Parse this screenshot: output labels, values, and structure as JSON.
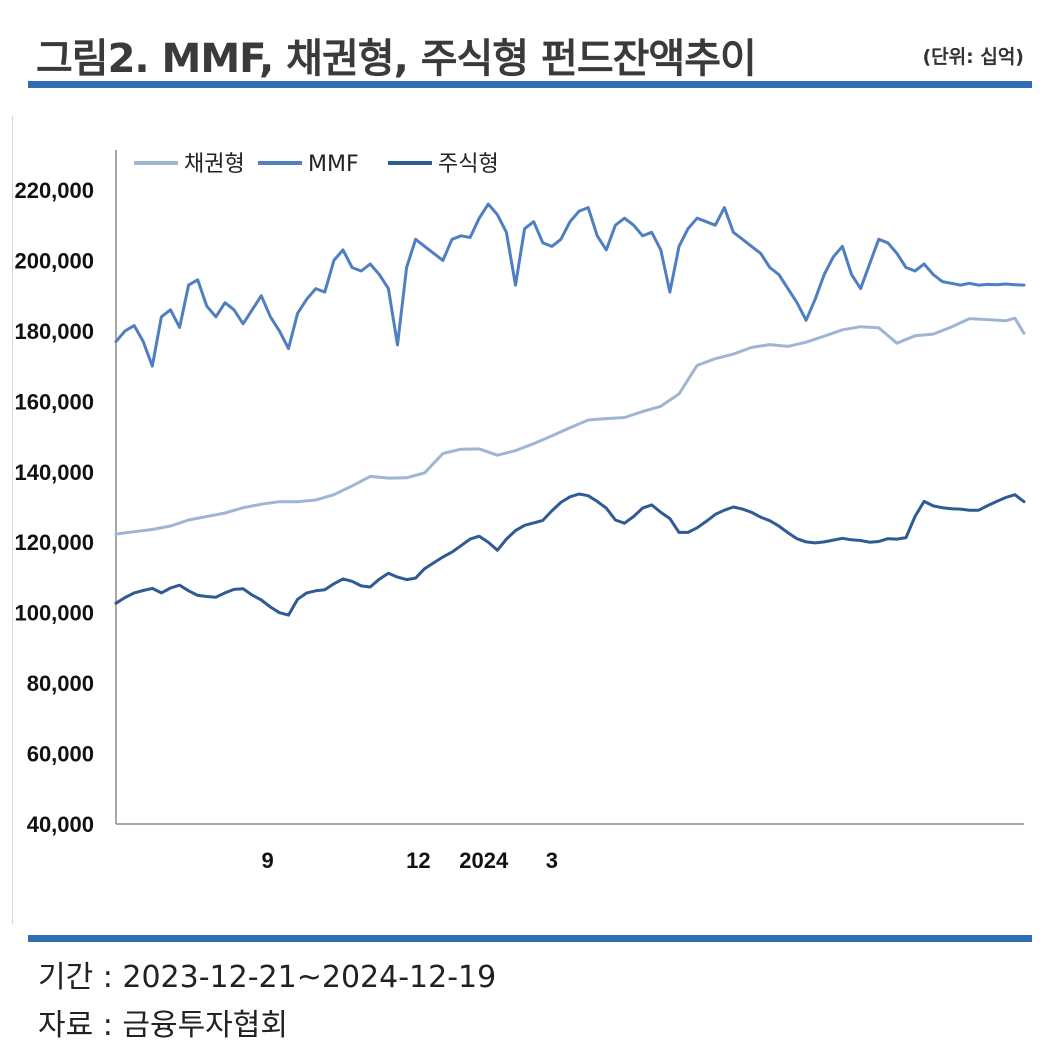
{
  "header": {
    "title": "그림2. MMF, 채권형, 주식형 펀드잔액추이",
    "unit": "(단위: 십억)"
  },
  "footer": {
    "period": "기간 : 2023-12-21~2024-12-19",
    "source": "자료 : 금융투자협회"
  },
  "colors": {
    "rule": "#2f6eb0",
    "bond": "#9fb6d3",
    "mmf": "#4f7fc0",
    "equity": "#2e5b94"
  },
  "chart_data": {
    "type": "line",
    "ylim": [
      40000,
      220000
    ],
    "yticks": [
      "220,000",
      "200,000",
      "180,000",
      "160,000",
      "140,000",
      "120,000",
      "100,000",
      "80,000",
      "60,000",
      "40,000"
    ],
    "ytick_values": [
      220000,
      200000,
      180000,
      160000,
      140000,
      120000,
      100000,
      80000,
      60000,
      40000
    ],
    "xlim": [
      0,
      100
    ],
    "xticks": [
      {
        "label": "9",
        "x": 16.7
      },
      {
        "label": "12",
        "x": 33.3
      },
      {
        "label": "2024",
        "x": 40.5
      },
      {
        "label": "3",
        "x": 48.0
      }
    ],
    "legend": [
      "채권형",
      "MMF",
      "주식형"
    ],
    "series": [
      {
        "name": "채권형",
        "color": "#9fb6d3",
        "x": [
          0,
          2,
          4,
          6,
          8,
          10,
          12,
          14,
          16,
          18,
          20,
          22,
          24,
          26,
          28,
          30,
          32,
          34,
          36,
          38,
          40,
          42,
          44,
          46,
          48,
          50,
          52,
          54,
          56,
          58,
          60,
          62,
          64,
          66,
          68,
          70,
          71,
          72,
          74,
          76,
          78,
          80,
          82,
          84,
          86,
          88,
          90,
          92,
          94,
          96,
          98,
          99,
          100
        ],
        "values": [
          122300,
          123000,
          123600,
          124600,
          126300,
          127300,
          128300,
          129800,
          130800,
          131500,
          131500,
          132000,
          133500,
          136000,
          138700,
          138200,
          138300,
          139700,
          145200,
          146400,
          146500,
          144700,
          146000,
          148000,
          150200,
          152500,
          154700,
          155100,
          155400,
          157100,
          158600,
          162100,
          170200,
          172100,
          173400,
          175300,
          175700,
          176100,
          175600,
          176800,
          178500,
          180300,
          181200,
          180900,
          176500,
          178600,
          179100,
          181100,
          183500,
          183200,
          182900,
          183600,
          179300
        ]
      },
      {
        "name": "MMF",
        "color": "#4f7fc0",
        "x": [
          0,
          1,
          2,
          3,
          4,
          5,
          6,
          7,
          8,
          9,
          10,
          11,
          12,
          13,
          14,
          15,
          16,
          17,
          18,
          19,
          20,
          21,
          22,
          23,
          24,
          25,
          26,
          27,
          28,
          29,
          30,
          31,
          32,
          33,
          34,
          35,
          36,
          37,
          38,
          39,
          40,
          41,
          42,
          43,
          44,
          45,
          46,
          47,
          48,
          49,
          50,
          51,
          52,
          53,
          54,
          55,
          56,
          57,
          58,
          59,
          60,
          61,
          62,
          63,
          64,
          65,
          66,
          67,
          68,
          69,
          70,
          71,
          72,
          73,
          74,
          75,
          76,
          77,
          78,
          79,
          80,
          81,
          82,
          83,
          84,
          85,
          86,
          87,
          88,
          89,
          90,
          91,
          92,
          93,
          94,
          95,
          96,
          97,
          98,
          99,
          100
        ],
        "values": [
          177000,
          180000,
          181500,
          177000,
          170000,
          184000,
          186000,
          181000,
          193000,
          194500,
          187000,
          184000,
          188000,
          186000,
          182000,
          186000,
          190000,
          184000,
          180000,
          175000,
          185000,
          189000,
          192000,
          191000,
          200000,
          203000,
          198000,
          197000,
          199000,
          196000,
          192000,
          176000,
          198000,
          206000,
          204000,
          202000,
          200000,
          206000,
          207000,
          206500,
          212000,
          216000,
          213000,
          208000,
          193000,
          209000,
          211000,
          205000,
          204000,
          206000,
          211000,
          214000,
          215000,
          207000,
          203000,
          210000,
          212000,
          210000,
          207000,
          208000,
          203000,
          191000,
          204000,
          209000,
          212000,
          211000,
          210000,
          215000,
          208000,
          206000,
          204000,
          202000,
          198000,
          196000,
          192000,
          188000,
          183000,
          189000,
          196000,
          201000,
          204000,
          196000,
          192000,
          199000,
          206000,
          205000,
          202000,
          198000,
          197000,
          199000,
          196000,
          194000,
          193500,
          193000,
          193500,
          193000,
          193200,
          193100,
          193300,
          193100,
          193000
        ]
      },
      {
        "name": "주식형",
        "color": "#2e5b94",
        "x": [
          0,
          1,
          2,
          3,
          4,
          5,
          6,
          7,
          8,
          9,
          10,
          11,
          12,
          13,
          14,
          15,
          16,
          17,
          18,
          19,
          20,
          21,
          22,
          23,
          24,
          25,
          26,
          27,
          28,
          29,
          30,
          31,
          32,
          33,
          34,
          35,
          36,
          37,
          38,
          39,
          40,
          41,
          42,
          43,
          44,
          45,
          46,
          47,
          48,
          49,
          50,
          51,
          52,
          53,
          54,
          55,
          56,
          57,
          58,
          59,
          60,
          61,
          62,
          63,
          64,
          65,
          66,
          67,
          68,
          69,
          70,
          71,
          72,
          73,
          74,
          75,
          76,
          77,
          78,
          79,
          80,
          81,
          82,
          83,
          84,
          85,
          86,
          87,
          88,
          89,
          90,
          91,
          92,
          93,
          94,
          95,
          96,
          97,
          98,
          99,
          100
        ],
        "values": [
          102700,
          104300,
          105600,
          106300,
          106900,
          105600,
          107000,
          107800,
          106200,
          104900,
          104600,
          104400,
          105600,
          106600,
          106800,
          105000,
          103600,
          101600,
          100000,
          99300,
          103800,
          105600,
          106200,
          106500,
          108200,
          109600,
          108900,
          107600,
          107300,
          109500,
          111200,
          110100,
          109400,
          109800,
          112500,
          114200,
          115800,
          117200,
          119000,
          120900,
          121700,
          120000,
          117700,
          120900,
          123300,
          124800,
          125500,
          126200,
          128900,
          131300,
          132900,
          133700,
          133200,
          131600,
          129700,
          126300,
          125400,
          127300,
          129700,
          130600,
          128500,
          126700,
          122800,
          122800,
          124100,
          125900,
          127900,
          129100,
          130000,
          129400,
          128500,
          127100,
          126100,
          124600,
          122700,
          121000,
          120100,
          119800,
          120100,
          120600,
          121100,
          120700,
          120500,
          120000,
          120200,
          121000,
          120900,
          121300,
          127300,
          131600,
          130300,
          129800,
          129500,
          129400,
          129100,
          129100,
          130400,
          131600,
          132700,
          133500,
          131500
        ]
      }
    ]
  }
}
